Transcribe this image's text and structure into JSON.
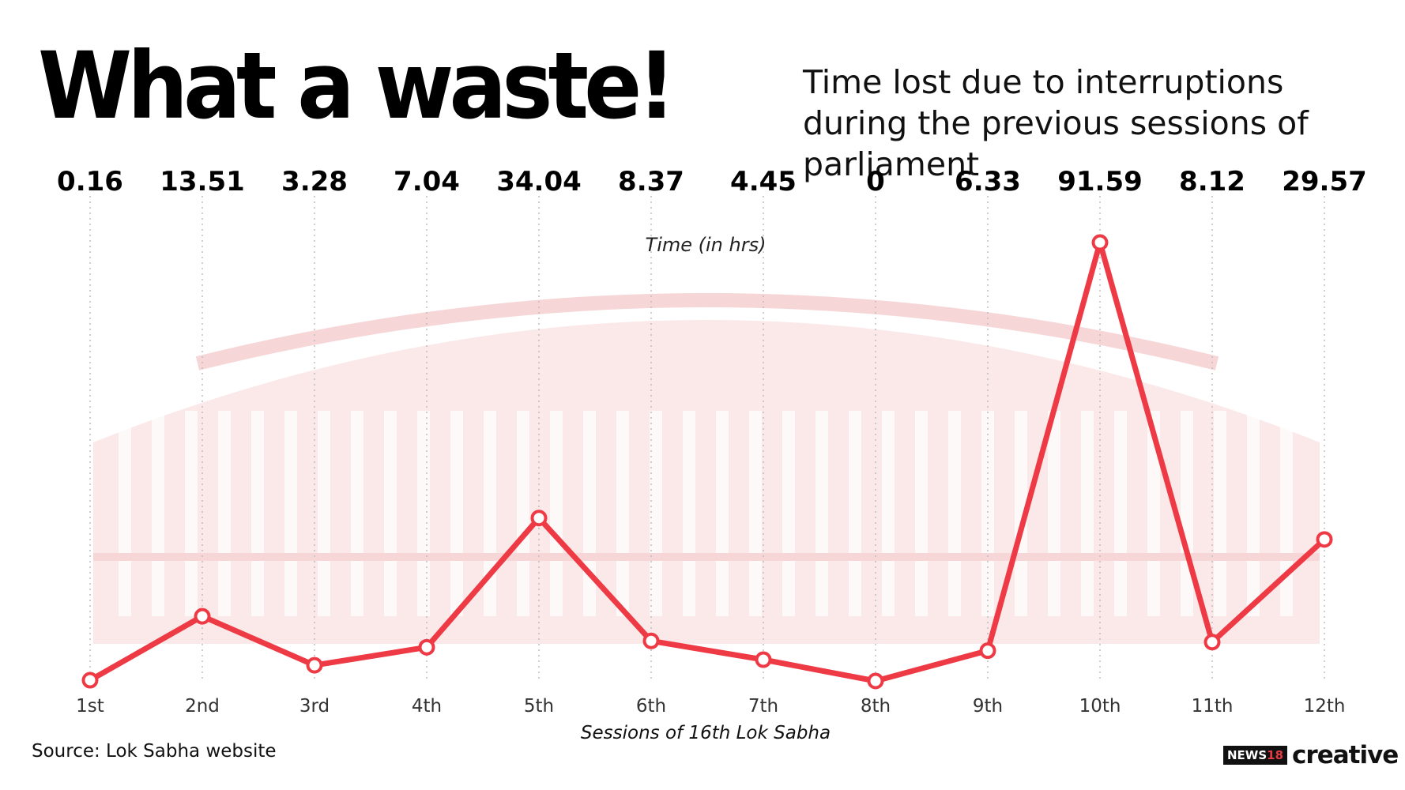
{
  "header": {
    "title": "What a waste!",
    "subtitle": "Time lost due to interruptions during the previous sessions of parliament"
  },
  "footer": {
    "source": "Source: Lok Sabha website",
    "logo_news": "NEWS",
    "logo_num": "18",
    "logo_creative": "creative"
  },
  "colors": {
    "line": "#ee3a45",
    "marker_fill": "#ffffff",
    "gridline": "#bdbdbd",
    "building": "#fbe8e8"
  },
  "chart_data": {
    "type": "line",
    "title": "",
    "xlabel": "Sessions of 16th Lok Sabha",
    "ylabel": "Time (in hrs)",
    "categories": [
      "1st",
      "2nd",
      "3rd",
      "4th",
      "5th",
      "6th",
      "7th",
      "8th",
      "9th",
      "10th",
      "11th",
      "12th"
    ],
    "series": [
      {
        "values": [
          0.16,
          13.51,
          3.28,
          7.04,
          34.04,
          8.37,
          4.45,
          0,
          6.33,
          91.59,
          8.12,
          29.57
        ],
        "labels": [
          "0.16",
          "13.51",
          "3.28",
          "7.04",
          "34.04",
          "8.37",
          "4.45",
          "0",
          "6.33",
          "91.59",
          "8.12",
          "29.57"
        ]
      }
    ],
    "ylim": [
      0,
      91.59
    ],
    "grid": "vertical dotted",
    "legend": "none"
  }
}
